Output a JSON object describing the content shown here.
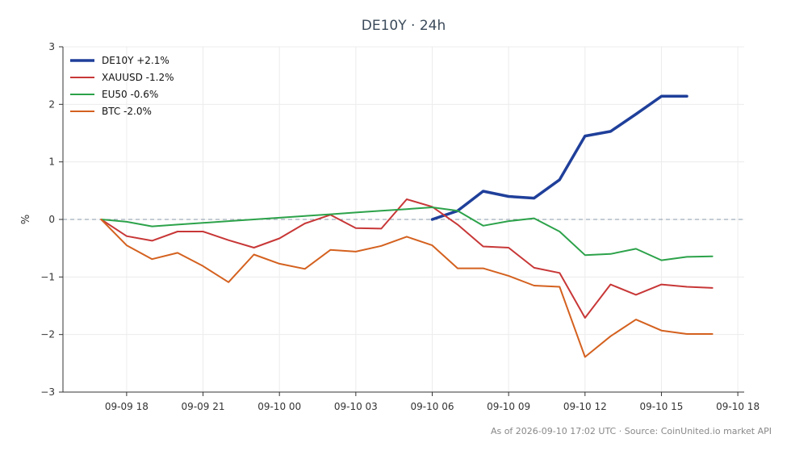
{
  "chart_data": {
    "type": "line",
    "title": "DE10Y · 24h",
    "xlabel": "",
    "ylabel": "%",
    "ylim": [
      -3,
      3
    ],
    "yticks": [
      {
        "value": 3,
        "label": "3"
      },
      {
        "value": 2,
        "label": "2"
      },
      {
        "value": 1,
        "label": "1"
      },
      {
        "value": 0,
        "label": "0"
      },
      {
        "value": -1,
        "label": "−1"
      },
      {
        "value": -2,
        "label": "−2"
      },
      {
        "value": -3,
        "label": "−3"
      }
    ],
    "xlim": [
      "09-09 15:30",
      "09-10 18:15"
    ],
    "xticks": [
      {
        "value": "09-09 18:00",
        "label": "09-09 18"
      },
      {
        "value": "09-09 21:00",
        "label": "09-09 21"
      },
      {
        "value": "09-10 00:00",
        "label": "09-10 00"
      },
      {
        "value": "09-10 03:00",
        "label": "09-10 03"
      },
      {
        "value": "09-10 06:00",
        "label": "09-10 06"
      },
      {
        "value": "09-10 09:00",
        "label": "09-10 09"
      },
      {
        "value": "09-10 12:00",
        "label": "09-10 12"
      },
      {
        "value": "09-10 15:00",
        "label": "09-10 15"
      },
      {
        "value": "09-10 18:00",
        "label": "09-10 18"
      }
    ],
    "baseline": 0,
    "grid": true,
    "legend_position": "top-left",
    "series": [
      {
        "name": "DE10Y +2.1%",
        "color": "#1f3f9a",
        "width": 3.5,
        "x": [
          "09-10 06:00",
          "09-10 07:00",
          "09-10 08:00",
          "09-10 09:00",
          "09-10 10:00",
          "09-10 11:00",
          "09-10 12:00",
          "09-10 13:00",
          "09-10 14:00",
          "09-10 15:00",
          "09-10 16:00"
        ],
        "values": [
          0.0,
          0.15,
          0.49,
          0.4,
          0.37,
          0.69,
          1.45,
          1.53,
          1.83,
          2.14,
          2.14
        ]
      },
      {
        "name": "XAUUSD -1.2%",
        "color": "#c83737",
        "width": 2,
        "x": [
          "09-09 17:00",
          "09-09 18:00",
          "09-09 19:00",
          "09-09 20:00",
          "09-09 21:00",
          "09-09 22:00",
          "09-09 23:00",
          "09-10 00:00",
          "09-10 01:00",
          "09-10 02:00",
          "09-10 03:00",
          "09-10 04:00",
          "09-10 05:00",
          "09-10 06:00",
          "09-10 07:00",
          "09-10 08:00",
          "09-10 09:00",
          "09-10 10:00",
          "09-10 11:00",
          "09-10 12:00",
          "09-10 13:00",
          "09-10 14:00",
          "09-10 15:00",
          "09-10 16:00",
          "09-10 17:00"
        ],
        "values": [
          0.0,
          -0.29,
          -0.37,
          -0.21,
          -0.21,
          -0.36,
          -0.49,
          -0.33,
          -0.07,
          0.08,
          -0.15,
          -0.16,
          0.35,
          0.22,
          -0.09,
          -0.47,
          -0.49,
          -0.84,
          -0.93,
          -1.71,
          -1.13,
          -1.31,
          -1.13,
          -1.17,
          -1.19
        ]
      },
      {
        "name": "EU50 -0.6%",
        "color": "#2ca24a",
        "width": 2,
        "x": [
          "09-09 17:00",
          "09-09 18:00",
          "09-09 19:00",
          "09-09 20:00",
          "09-09 21:00",
          "09-09 22:00",
          "09-09 23:00",
          "09-10 00:00",
          "09-10 01:00",
          "09-10 02:00",
          "09-10 03:00",
          "09-10 04:00",
          "09-10 05:00",
          "09-10 06:00",
          "09-10 07:00",
          "09-10 08:00",
          "09-10 09:00",
          "09-10 10:00",
          "09-10 11:00",
          "09-10 12:00",
          "09-10 13:00",
          "09-10 14:00",
          "09-10 15:00",
          "09-10 16:00",
          "09-10 17:00"
        ],
        "values": [
          0.0,
          -0.04,
          -0.12,
          -0.09,
          -0.06,
          -0.03,
          0.0,
          0.03,
          0.06,
          0.09,
          0.12,
          0.15,
          0.18,
          0.21,
          0.15,
          -0.11,
          -0.03,
          0.02,
          -0.21,
          -0.62,
          -0.6,
          -0.51,
          -0.71,
          -0.65,
          -0.64
        ]
      },
      {
        "name": "BTC -2.0%",
        "color": "#d4611f",
        "width": 2,
        "x": [
          "09-09 17:00",
          "09-09 18:00",
          "09-09 19:00",
          "09-09 20:00",
          "09-09 21:00",
          "09-09 22:00",
          "09-09 23:00",
          "09-10 00:00",
          "09-10 01:00",
          "09-10 02:00",
          "09-10 03:00",
          "09-10 04:00",
          "09-10 05:00",
          "09-10 06:00",
          "09-10 07:00",
          "09-10 08:00",
          "09-10 09:00",
          "09-10 10:00",
          "09-10 11:00",
          "09-10 12:00",
          "09-10 13:00",
          "09-10 14:00",
          "09-10 15:00",
          "09-10 16:00",
          "09-10 17:00"
        ],
        "values": [
          0.0,
          -0.45,
          -0.69,
          -0.58,
          -0.81,
          -1.09,
          -0.61,
          -0.77,
          -0.86,
          -0.53,
          -0.56,
          -0.46,
          -0.3,
          -0.45,
          -0.85,
          -0.85,
          -0.98,
          -1.15,
          -1.17,
          -2.39,
          -2.03,
          -1.74,
          -1.93,
          -1.99,
          -1.99
        ]
      }
    ]
  },
  "footnote": "As of 2026-09-10 17:02 UTC · Source: CoinUnited.io market API"
}
